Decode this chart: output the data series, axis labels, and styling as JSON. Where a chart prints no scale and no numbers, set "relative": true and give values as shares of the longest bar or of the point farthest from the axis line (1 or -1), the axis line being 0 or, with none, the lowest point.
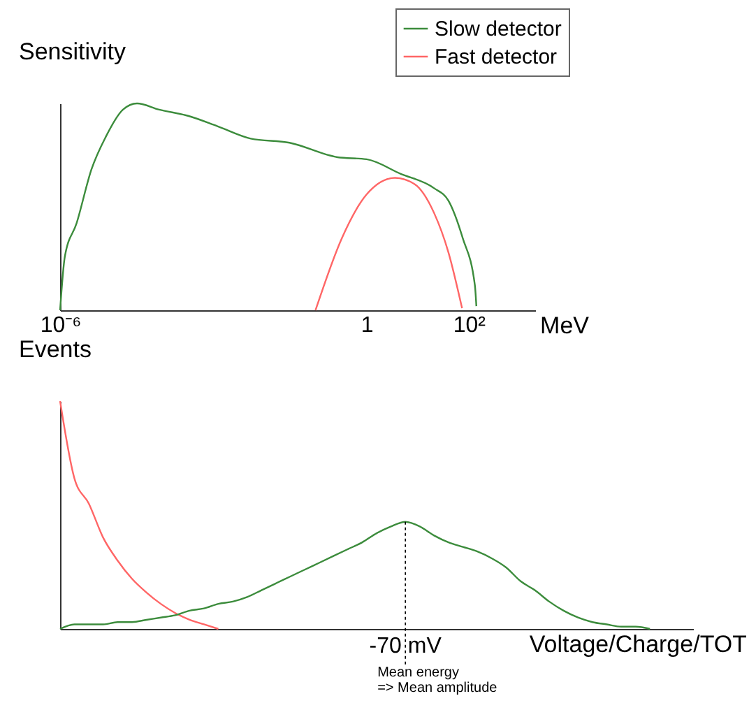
{
  "chart_data": [
    {
      "type": "line",
      "ylabel": "Sensitivity",
      "xlabel": "MeV",
      "relative": true,
      "log": "x",
      "grid": false,
      "legend": "top right",
      "xlim": [
        1e-06,
        2000
      ],
      "xticks": [
        {
          "value": 1e-06,
          "label": "10⁻⁶"
        },
        1,
        {
          "value": 100,
          "label": "10²"
        }
      ],
      "series": [
        {
          "name": "Slow detector",
          "color": "#3c8c3c",
          "x": [
            1e-06,
            1.24e-06,
            2.1e-06,
            4.1e-06,
            7.9e-06,
            1.7e-05,
            3.2e-05,
            8.7e-05,
            0.00032,
            0.0012,
            0.0054,
            0.031,
            0.27,
            1,
            4.6,
            21,
            40,
            76,
            132,
            141
          ],
          "values": [
            0,
            0.26,
            0.42,
            0.68,
            0.84,
            0.97,
            1.0,
            0.97,
            0.94,
            0.89,
            0.83,
            0.81,
            0.74,
            0.73,
            0.66,
            0.59,
            0.53,
            0.35,
            0.12,
            0.02
          ]
        },
        {
          "name": "Fast detector",
          "color": "#ff6666",
          "x": [
            0.1,
            0.33,
            1,
            3.6,
            8.7,
            21,
            40,
            74
          ],
          "values": [
            0,
            0.35,
            0.56,
            0.64,
            0.61,
            0.47,
            0.28,
            0.01
          ]
        }
      ]
    },
    {
      "type": "line",
      "ylabel": "Events",
      "xlabel": "Voltage/Charge/TOT",
      "relative": true,
      "grid": false,
      "categories": [
        null,
        null,
        null,
        null,
        null,
        null,
        null,
        null,
        null,
        null,
        null,
        null,
        null,
        null,
        null,
        null,
        null,
        null,
        null,
        null,
        null,
        null,
        null,
        null,
        null,
        null,
        null,
        null,
        null,
        null,
        null,
        null,
        null,
        null,
        null,
        null,
        null,
        null,
        null,
        null,
        null,
        null,
        null,
        null,
        null
      ],
      "annotations": [
        "-70 mV",
        "Mean energy\n=> Mean amplitude"
      ],
      "series": [
        {
          "color": "#ff6666",
          "values": [
            1.0,
            0.66,
            0.55,
            0.4,
            0.3,
            0.22,
            0.16,
            0.11,
            0.07,
            0.04,
            0.02,
            0.0,
            null,
            null,
            null,
            null,
            null,
            null,
            null,
            null,
            null,
            null,
            null,
            null,
            null,
            null,
            null,
            null,
            null,
            null,
            null,
            null,
            null,
            null,
            null,
            null,
            null,
            null,
            null,
            null,
            null,
            null,
            null,
            null,
            null
          ]
        },
        {
          "color": "#3c8c3c",
          "values": [
            0,
            0.02,
            0.02,
            0.02,
            0.03,
            0.03,
            0.04,
            0.05,
            0.06,
            0.08,
            0.09,
            0.11,
            0.12,
            0.14,
            0.17,
            0.2,
            0.23,
            0.26,
            0.29,
            0.32,
            0.35,
            0.38,
            0.42,
            0.45,
            0.47,
            0.45,
            0.41,
            0.38,
            0.36,
            0.34,
            0.31,
            0.27,
            0.21,
            0.17,
            0.12,
            0.08,
            0.05,
            0.03,
            0.02,
            0.01,
            0.01,
            0,
            null,
            null,
            null
          ]
        }
      ]
    }
  ]
}
